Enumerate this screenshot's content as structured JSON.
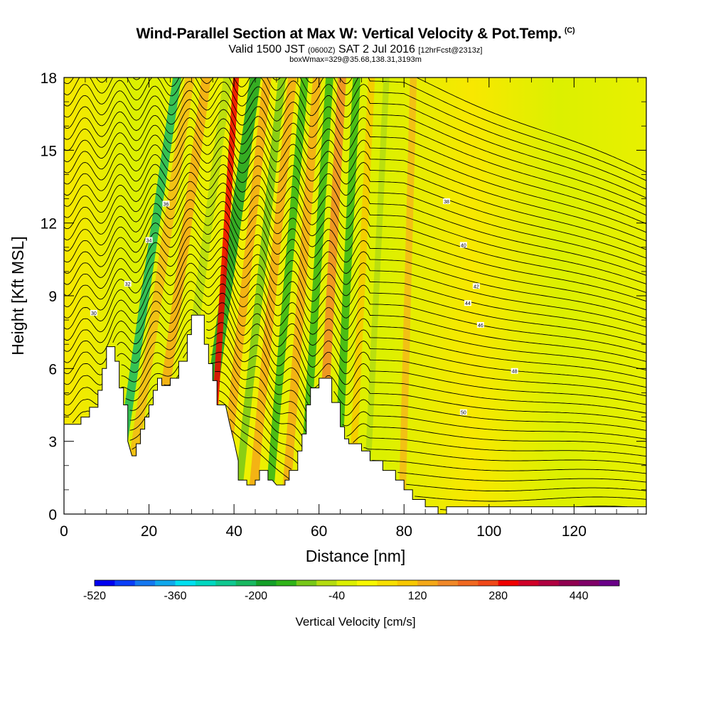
{
  "header": {
    "title": "Wind-Parallel Section at Max W: Vertical Velocity & Pot.Temp.",
    "copyright": "(C)",
    "valid_prefix": "Valid 1500 JST",
    "valid_utc": "(0600Z)",
    "valid_date": "SAT 2 Jul 2016",
    "forecast_info": "[12hrFcst@2313z]",
    "box_info": "boxWmax=329@35.68,138.31,3193m"
  },
  "chart_data": {
    "type": "heatmap",
    "xlabel": "Distance [nm]",
    "ylabel": "Height [Kft MSL]",
    "xlim": [
      0,
      137
    ],
    "ylim": [
      0,
      18
    ],
    "x_ticks": [
      "0",
      "20",
      "40",
      "60",
      "80",
      "100",
      "120"
    ],
    "y_ticks": [
      "0",
      "3",
      "6",
      "9",
      "12",
      "15",
      "18"
    ],
    "colorbar": {
      "label": "Vertical Velocity [cm/s]",
      "tick_labels": [
        "-520",
        "-360",
        "-200",
        "-40",
        "120",
        "280",
        "440"
      ],
      "tick_values": [
        -520,
        -360,
        -200,
        -40,
        120,
        280,
        440
      ],
      "min": -520,
      "max": 520,
      "step": 40,
      "colors": [
        "#0000f0",
        "#0a3ef8",
        "#1478f0",
        "#10a8ec",
        "#00e0f0",
        "#00d8c0",
        "#10c890",
        "#18b860",
        "#14a028",
        "#30b418",
        "#78c818",
        "#b4dc10",
        "#dcf000",
        "#f8f800",
        "#f8e000",
        "#f8c800",
        "#f4a818",
        "#f08828",
        "#f06820",
        "#f04818",
        "#f00000",
        "#d00028",
        "#b00040",
        "#900050",
        "#800068",
        "#6a0088"
      ]
    },
    "terrain_kft": [
      [
        0,
        3.7
      ],
      [
        4,
        3.7
      ],
      [
        4,
        4
      ],
      [
        6,
        4
      ],
      [
        6,
        4.4
      ],
      [
        8,
        4.4
      ],
      [
        8,
        5.1
      ],
      [
        9,
        5.1
      ],
      [
        9,
        6
      ],
      [
        10,
        6
      ],
      [
        10,
        6.9
      ],
      [
        11,
        6.9
      ],
      [
        12,
        6.9
      ],
      [
        12,
        6.3
      ],
      [
        13,
        6.3
      ],
      [
        13,
        5.2
      ],
      [
        14,
        5.2
      ],
      [
        14,
        4.5
      ],
      [
        15,
        4.5
      ],
      [
        15,
        3
      ],
      [
        16,
        2.4
      ],
      [
        17,
        2.4
      ],
      [
        17,
        2.9
      ],
      [
        18,
        2.9
      ],
      [
        18,
        3.5
      ],
      [
        19,
        3.5
      ],
      [
        19,
        4
      ],
      [
        20,
        4
      ],
      [
        20,
        4.5
      ],
      [
        21,
        4.5
      ],
      [
        21,
        5.1
      ],
      [
        22,
        5.1
      ],
      [
        22,
        5.6
      ],
      [
        23,
        5.6
      ],
      [
        23,
        5.3
      ],
      [
        25,
        5.3
      ],
      [
        25,
        5.6
      ],
      [
        27,
        5.6
      ],
      [
        27,
        6.3
      ],
      [
        29,
        6.3
      ],
      [
        29,
        7.4
      ],
      [
        30,
        7.4
      ],
      [
        30,
        8.2
      ],
      [
        32,
        8.2
      ],
      [
        32,
        8.2
      ],
      [
        33,
        8.2
      ],
      [
        33,
        7
      ],
      [
        34,
        7
      ],
      [
        34,
        6.2
      ],
      [
        35,
        6.2
      ],
      [
        35,
        5.5
      ],
      [
        36,
        5.5
      ],
      [
        36,
        4.5
      ],
      [
        38,
        4.5
      ],
      [
        39,
        3.7
      ],
      [
        40,
        3
      ],
      [
        41,
        2.2
      ],
      [
        41,
        1.4
      ],
      [
        43,
        1.4
      ],
      [
        43,
        1.2
      ],
      [
        45,
        1.2
      ],
      [
        45,
        1.4
      ],
      [
        46,
        1.4
      ],
      [
        46,
        1.8
      ],
      [
        48,
        1.8
      ],
      [
        48,
        1.4
      ],
      [
        49,
        1.4
      ],
      [
        50,
        1.2
      ],
      [
        52,
        1.2
      ],
      [
        52,
        1.4
      ],
      [
        53,
        1.4
      ],
      [
        53,
        1.8
      ],
      [
        55,
        1.8
      ],
      [
        55,
        2.6
      ],
      [
        56,
        2.6
      ],
      [
        56,
        3.3
      ],
      [
        57,
        3.3
      ],
      [
        57,
        4.5
      ],
      [
        58,
        4.5
      ],
      [
        58,
        5.2
      ],
      [
        60,
        5.2
      ],
      [
        60,
        5.6
      ],
      [
        63,
        5.6
      ],
      [
        63,
        4.6
      ],
      [
        65,
        4.6
      ],
      [
        65,
        3.6
      ],
      [
        66,
        3.6
      ],
      [
        66,
        3.1
      ],
      [
        67,
        3.1
      ],
      [
        67,
        2.9
      ],
      [
        70,
        2.9
      ],
      [
        70,
        2.6
      ],
      [
        72,
        2.6
      ],
      [
        72,
        2.2
      ],
      [
        75,
        2.2
      ],
      [
        75,
        1.8
      ],
      [
        78,
        1.8
      ],
      [
        78,
        1.4
      ],
      [
        80,
        1.4
      ],
      [
        80,
        1
      ],
      [
        82,
        1
      ],
      [
        82,
        0.6
      ],
      [
        85,
        0.6
      ],
      [
        85,
        0.3
      ],
      [
        88,
        0.3
      ],
      [
        88,
        0
      ],
      [
        90,
        0
      ],
      [
        90,
        0.3
      ],
      [
        137,
        0.3
      ]
    ],
    "theta_contour_labels": [
      "30",
      "32",
      "34",
      "36",
      "38",
      "40",
      "42",
      "44",
      "46",
      "48",
      "50"
    ]
  }
}
